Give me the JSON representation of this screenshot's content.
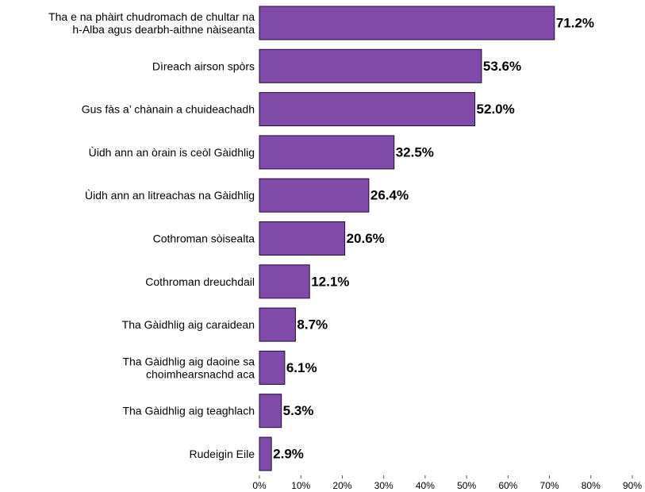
{
  "chart_data": {
    "type": "bar",
    "orientation": "horizontal",
    "title": "",
    "xlabel": "",
    "ylabel": "",
    "categories": [
      [
        "Tha e na phàirt chudromach de chultar na",
        "h-Alba agus dearbh-aithne nàiseanta"
      ],
      [
        "Dìreach airson spòrs"
      ],
      [
        "Gus fàs a’ chànain a chuideachadh"
      ],
      [
        "Ùidh ann an òrain is ceòl Gàidhlig"
      ],
      [
        "Ùidh ann an litreachas na Gàidhlig"
      ],
      [
        "Cothroman sòisealta"
      ],
      [
        "Cothroman dreuchdail"
      ],
      [
        "Tha Gàidhlig aig caraidean"
      ],
      [
        "Tha Gàidhlig aig daoine sa",
        "choimhearsnachd aca"
      ],
      [
        "Tha Gàidhlig aig teaghlach"
      ],
      [
        "Rudeigin Eile"
      ]
    ],
    "values": [
      71.2,
      53.6,
      52.0,
      32.5,
      26.4,
      20.6,
      12.1,
      8.7,
      6.1,
      5.3,
      2.9
    ],
    "value_labels": [
      "71.2%",
      "53.6%",
      "52.0%",
      "32.5%",
      "26.4%",
      "20.6%",
      "12.1%",
      "8.7%",
      "6.1%",
      "5.3%",
      "2.9%"
    ],
    "xlim": [
      0,
      90
    ],
    "xticks": [
      0,
      10,
      20,
      30,
      40,
      50,
      60,
      70,
      80,
      90
    ],
    "xtick_labels": [
      "0%",
      "10%",
      "20%",
      "30%",
      "40%",
      "50%",
      "60%",
      "70%",
      "80%",
      "90%"
    ],
    "grid": false,
    "legend": "none",
    "colors": {
      "bar": "#7f4aa8",
      "bar_edge": "#1e1030"
    }
  }
}
